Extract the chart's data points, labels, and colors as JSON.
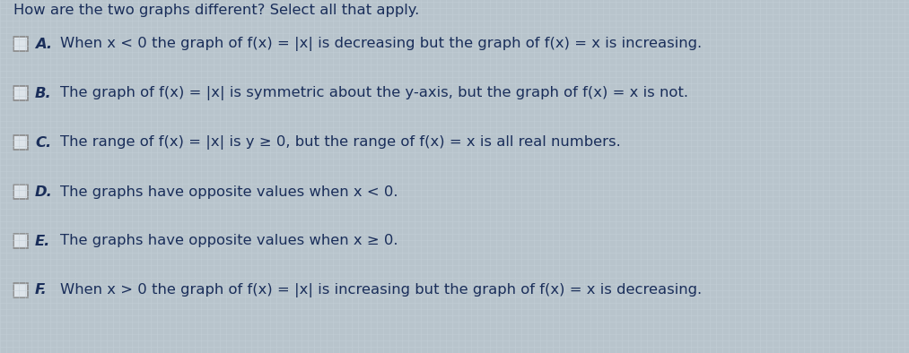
{
  "background_color": "#b8c4cc",
  "grid_color": "#c8d4dc",
  "options": [
    {
      "label": "A.",
      "text": "When x < 0 the graph of f(x) = |x| is decreasing but the graph of f(x) = x is increasing."
    },
    {
      "label": "B.",
      "text": "The graph of f(x) = |x| is symmetric about the y-axis, but the graph of f(x) = x is not."
    },
    {
      "label": "C.",
      "text": "The range of f(x) = |x| is y ≥ 0, but the range of f(x) = x is all real numbers."
    },
    {
      "label": "D.",
      "text": "The graphs have opposite values when x < 0."
    },
    {
      "label": "E.",
      "text": "The graphs have opposite values when x ≥ 0."
    },
    {
      "label": "F.",
      "text": "When x > 0 the graph of f(x) = |x| is increasing but the graph of f(x) = x is decreasing."
    }
  ],
  "text_color": "#1a2e5a",
  "checkbox_facecolor": "#dde4ea",
  "checkbox_edgecolor": "#888888",
  "font_size": 11.8,
  "label_font_size": 11.8,
  "title_partial": "How are the two graphs different? Select all that apply.",
  "title_color": "#1a2e5a"
}
